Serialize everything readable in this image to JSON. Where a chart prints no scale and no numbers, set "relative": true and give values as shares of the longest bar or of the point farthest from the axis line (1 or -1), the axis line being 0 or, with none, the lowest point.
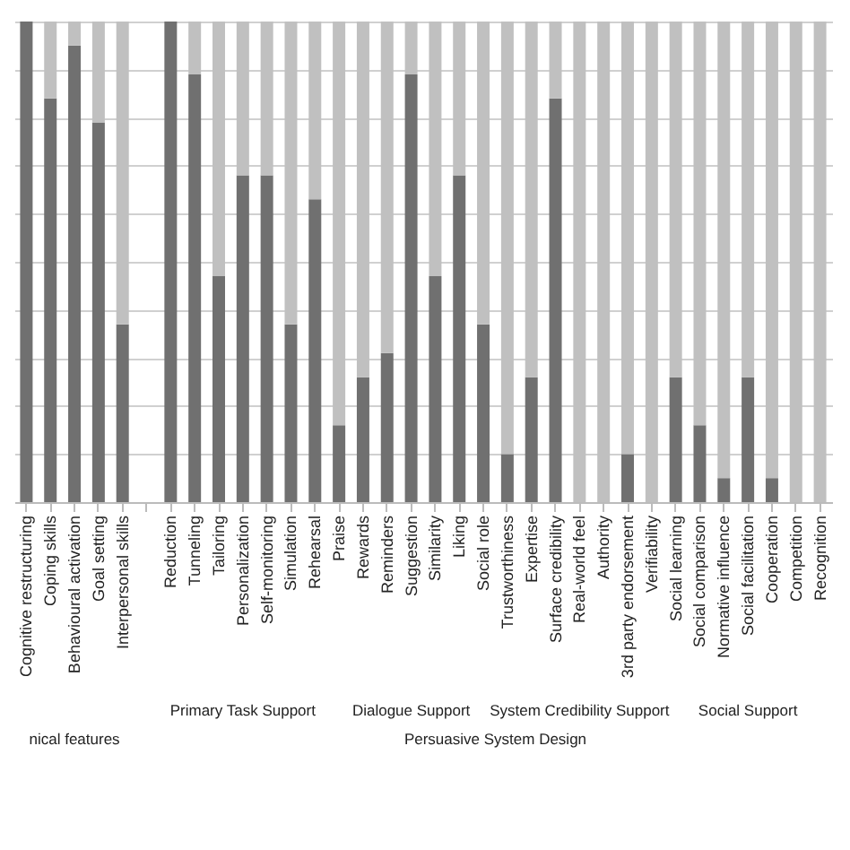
{
  "chart_data": {
    "type": "bar",
    "stacked": true,
    "relative": true,
    "grid": "y",
    "legend": false,
    "categories": [
      "Cognitive restructuring",
      "Coping skills",
      "Behavioural activation",
      "Goal setting",
      "Interpersonal skills",
      null,
      "Reduction",
      "Tunneling",
      "Tailoring",
      "Personalization",
      "Self-monitoring",
      "Simulation",
      "Rehearsal",
      "Praise",
      "Rewards",
      "Reminders",
      "Suggestion",
      "Similarity",
      "Liking",
      "Social role",
      "Trustworthiness",
      "Expertise",
      "Surface credibility",
      "Real-world feel",
      "Authority",
      "3rd party endorsement",
      "Verifiability",
      "Social learning",
      "Social comparison",
      "Normative influence",
      "Social facilitation",
      "Cooperation",
      "Competition",
      "Recognition"
    ],
    "series": [
      {
        "color": "#707070",
        "values": [
          1.0,
          0.84,
          0.95,
          0.79,
          0.37,
          null,
          1.0,
          0.89,
          0.47,
          0.68,
          0.68,
          0.37,
          0.63,
          0.16,
          0.26,
          0.31,
          0.89,
          0.47,
          0.68,
          0.37,
          0.1,
          0.26,
          0.84,
          0,
          0,
          0.1,
          0,
          0.26,
          0.16,
          0.05,
          0.26,
          0.05,
          0,
          0
        ]
      },
      {
        "color": "#c0c0c0",
        "values": [
          0,
          0.16,
          0.05,
          0.21,
          0.63,
          null,
          0,
          0.11,
          0.53,
          0.32,
          0.32,
          0.63,
          0.37,
          0.84,
          0.74,
          0.69,
          0.11,
          0.53,
          0.32,
          0.63,
          0.9,
          0.74,
          0.16,
          1.0,
          1.0,
          0.9,
          1.0,
          0.74,
          0.84,
          0.95,
          0.74,
          0.95,
          1.0,
          1.0
        ]
      }
    ],
    "annotations": [
      "Primary Task Support",
      "Dialogue Support",
      "System Credibility Support",
      "Social Support",
      "nical features",
      "Persuasive System Design"
    ]
  }
}
